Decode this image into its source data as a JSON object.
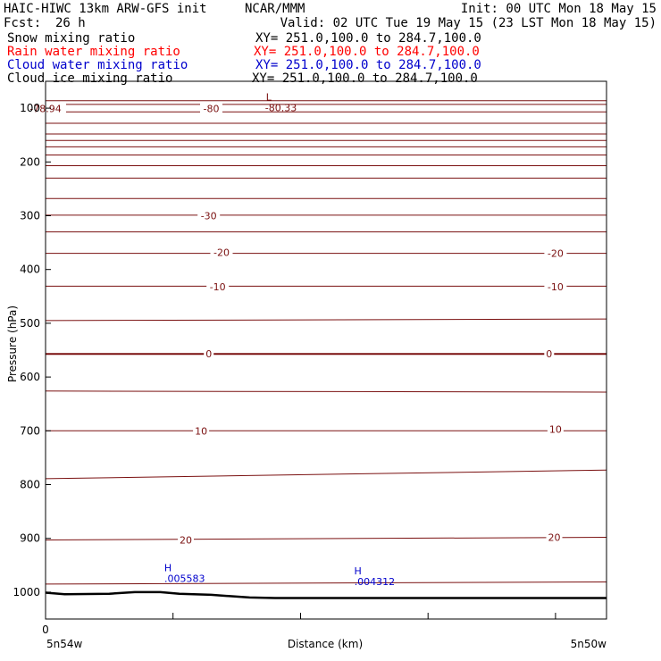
{
  "header": {
    "title_left": "HAIC-HIWC 13km ARW-GFS init",
    "org": "NCAR/MMM",
    "init": "Init: 00 UTC Mon 18 May 15",
    "fcst_label": "Fcst:",
    "fcst_value": "26 h",
    "valid": "Valid: 02 UTC Tue 19 May 15 (23 LST Mon 18 May 15)"
  },
  "fields": [
    {
      "name": "Snow mixing ratio",
      "xy": "XY= 251.0,100.0 to 284.7,100.0",
      "color": "#000000"
    },
    {
      "name": "Rain water mixing ratio",
      "xy": "XY= 251.0,100.0 to 284.7,100.0",
      "color": "#ff0000"
    },
    {
      "name": "Cloud water mixing ratio",
      "xy": "XY= 251.0,100.0 to 284.7,100.0",
      "color": "#0000cc"
    },
    {
      "name": "Cloud ice mixing ratio",
      "xy": "XY= 251.0,100.0 to 284.7,100.0",
      "color": "#000000"
    }
  ],
  "chart_data": {
    "type": "line",
    "xlabel": "Distance (km)",
    "ylabel": "Pressure (hPa)",
    "xlim": [
      0,
      4.4
    ],
    "ylim": [
      1050,
      50
    ],
    "y_ticks": [
      100,
      200,
      300,
      400,
      500,
      600,
      700,
      800,
      900,
      1000
    ],
    "x_ticks_labeled": [
      {
        "x": 0,
        "label": "0"
      }
    ],
    "x_minor_ticks": [
      1,
      2,
      3,
      4
    ],
    "x_endpoint_labels": {
      "left": "5n54w",
      "right": "5n50w"
    },
    "contour_color": "#7a1010",
    "isotherms": [
      {
        "p": [
          86,
          86
        ],
        "label": null
      },
      {
        "p": [
          93,
          93
        ],
        "label": null
      },
      {
        "p": [
          107,
          107
        ],
        "label": null
      },
      {
        "p": [
          128,
          128
        ],
        "label": null
      },
      {
        "p": [
          148,
          148
        ],
        "label": null
      },
      {
        "p": [
          160,
          160
        ],
        "label": null
      },
      {
        "p": [
          172,
          172
        ],
        "label": null
      },
      {
        "p": [
          187,
          187
        ],
        "label": null
      },
      {
        "p": [
          207,
          207
        ],
        "label": null
      },
      {
        "p": [
          230,
          230
        ],
        "label": null
      },
      {
        "p": [
          268,
          268
        ],
        "label": null
      },
      {
        "p": [
          299,
          299
        ],
        "label": "-30"
      },
      {
        "p": [
          330,
          330
        ],
        "label": null
      },
      {
        "p": [
          370,
          370
        ],
        "label": "-20"
      },
      {
        "p": [
          431,
          431
        ],
        "label": "-10"
      },
      {
        "p": [
          495,
          492
        ],
        "label": null
      },
      {
        "p": [
          557,
          557
        ],
        "label": "0",
        "bold": true
      },
      {
        "p": [
          626,
          628
        ],
        "label": null
      },
      {
        "p": [
          700,
          700
        ],
        "label": "10"
      },
      {
        "p": [
          789,
          773
        ],
        "label": null
      },
      {
        "p": [
          903,
          898
        ],
        "label": "20"
      },
      {
        "p": [
          985,
          981
        ],
        "label": null
      }
    ],
    "inline_labels": [
      {
        "x": 1.28,
        "p": 300,
        "text": "-30"
      },
      {
        "x": 1.38,
        "p": 368,
        "text": "-20"
      },
      {
        "x": 4.0,
        "p": 370,
        "text": "-20"
      },
      {
        "x": 1.35,
        "p": 432,
        "text": "-10"
      },
      {
        "x": 4.0,
        "p": 432,
        "text": "-10"
      },
      {
        "x": 1.28,
        "p": 557,
        "text": "0"
      },
      {
        "x": 3.95,
        "p": 557,
        "text": "0"
      },
      {
        "x": 1.22,
        "p": 700,
        "text": "10"
      },
      {
        "x": 4.0,
        "p": 697,
        "text": "10"
      },
      {
        "x": 1.1,
        "p": 903,
        "text": "20"
      },
      {
        "x": 3.99,
        "p": 898,
        "text": "20"
      },
      {
        "x": 1.3,
        "p": 101,
        "text": "-80"
      },
      {
        "x": 0.0,
        "p": 101,
        "text": "-78.94"
      }
    ],
    "extrema": [
      {
        "kind": "L",
        "x": 1.75,
        "p": 96,
        "value": "-80.33",
        "color": "#7a1010"
      },
      {
        "kind": "H",
        "x": 0.96,
        "p": 971,
        "value": ".005583",
        "color": "#0000cc"
      },
      {
        "kind": "H",
        "x": 2.45,
        "p": 977,
        "value": ".004312",
        "color": "#0000cc"
      }
    ],
    "terrain": {
      "x": [
        0,
        0.15,
        0.5,
        0.7,
        0.9,
        1.05,
        1.3,
        1.6,
        1.8,
        2.2,
        3.0,
        4.4
      ],
      "p": [
        1001,
        1004,
        1003,
        1000,
        1000,
        1003,
        1005,
        1010,
        1011,
        1011,
        1011,
        1011
      ]
    }
  }
}
